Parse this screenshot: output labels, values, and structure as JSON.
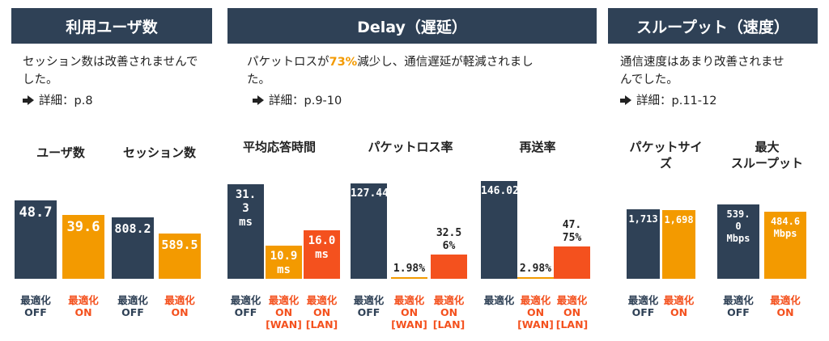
{
  "sections": [
    {
      "id": "users",
      "header": "利用ユーザ数",
      "desc_line1": "セッション数は改善されませんで",
      "desc_line2": "した。",
      "detail": "詳細：p.8"
    },
    {
      "id": "delay",
      "header": "Delay（遅延）",
      "desc_pre": "パケットロスが",
      "desc_highlight": "73%",
      "desc_post": "減少し、通信遅延が軽減されまし",
      "desc_line2": "た。",
      "detail": "詳細：p.9-10"
    },
    {
      "id": "throughput",
      "header": "スループット（速度）",
      "desc_line1": "通信速度はあまり改善されませ",
      "desc_line2": "んでした。",
      "detail": "詳細：p.11-12"
    }
  ],
  "colors": {
    "header_bg": "#2f4156",
    "bar_off": "#2f4156",
    "bar_on": "#f39a00",
    "bar_lan": "#f4511e",
    "highlight": "#f39a00"
  },
  "chart_data": [
    {
      "type": "bar",
      "title": "ユーザ数",
      "categories": [
        "最適化 OFF",
        "最適化 ON"
      ],
      "values": [
        48.7,
        39.6
      ],
      "value_labels": [
        "48.7",
        "39.6"
      ]
    },
    {
      "type": "bar",
      "title": "セッション数",
      "categories": [
        "最適化 OFF",
        "最適化 ON"
      ],
      "values": [
        808.2,
        589.5
      ],
      "value_labels": [
        "808.2",
        "589.5"
      ]
    },
    {
      "type": "bar",
      "title": "平均応答時間",
      "categories": [
        "最適化 OFF",
        "最適化 ON [WAN]",
        "最適化 ON [LAN]"
      ],
      "values": [
        31.3,
        10.9,
        16.0
      ],
      "value_labels": [
        "31.3 ms",
        "10.9 ms",
        "16.0 ms"
      ]
    },
    {
      "type": "bar",
      "title": "パケットロス率",
      "categories": [
        "最適化 OFF",
        "最適化 ON [WAN]",
        "最適化 ON [LAN]"
      ],
      "values": [
        127.44,
        1.98,
        32.56
      ],
      "value_labels": [
        "127.44%",
        "1.98%",
        "32.56%"
      ]
    },
    {
      "type": "bar",
      "title": "再送率",
      "categories": [
        "最適化",
        "最適化 ON [WAN]",
        "最適化 ON [LAN]"
      ],
      "values": [
        146.02,
        2.98,
        47.75
      ],
      "value_labels": [
        "146.02%",
        "2.98%",
        "47.75%"
      ]
    },
    {
      "type": "bar",
      "title": "パケットサイズ",
      "categories": [
        "最適化 OFF",
        "最適化 ON"
      ],
      "values": [
        1713,
        1698
      ],
      "value_labels": [
        "1,713",
        "1,698"
      ]
    },
    {
      "type": "bar",
      "title": "最大スループット",
      "categories": [
        "最適化 OFF",
        "最適化 ON"
      ],
      "values": [
        539.0,
        484.6
      ],
      "value_labels": [
        "539.0 Mbps",
        "484.6 Mbps"
      ]
    }
  ]
}
